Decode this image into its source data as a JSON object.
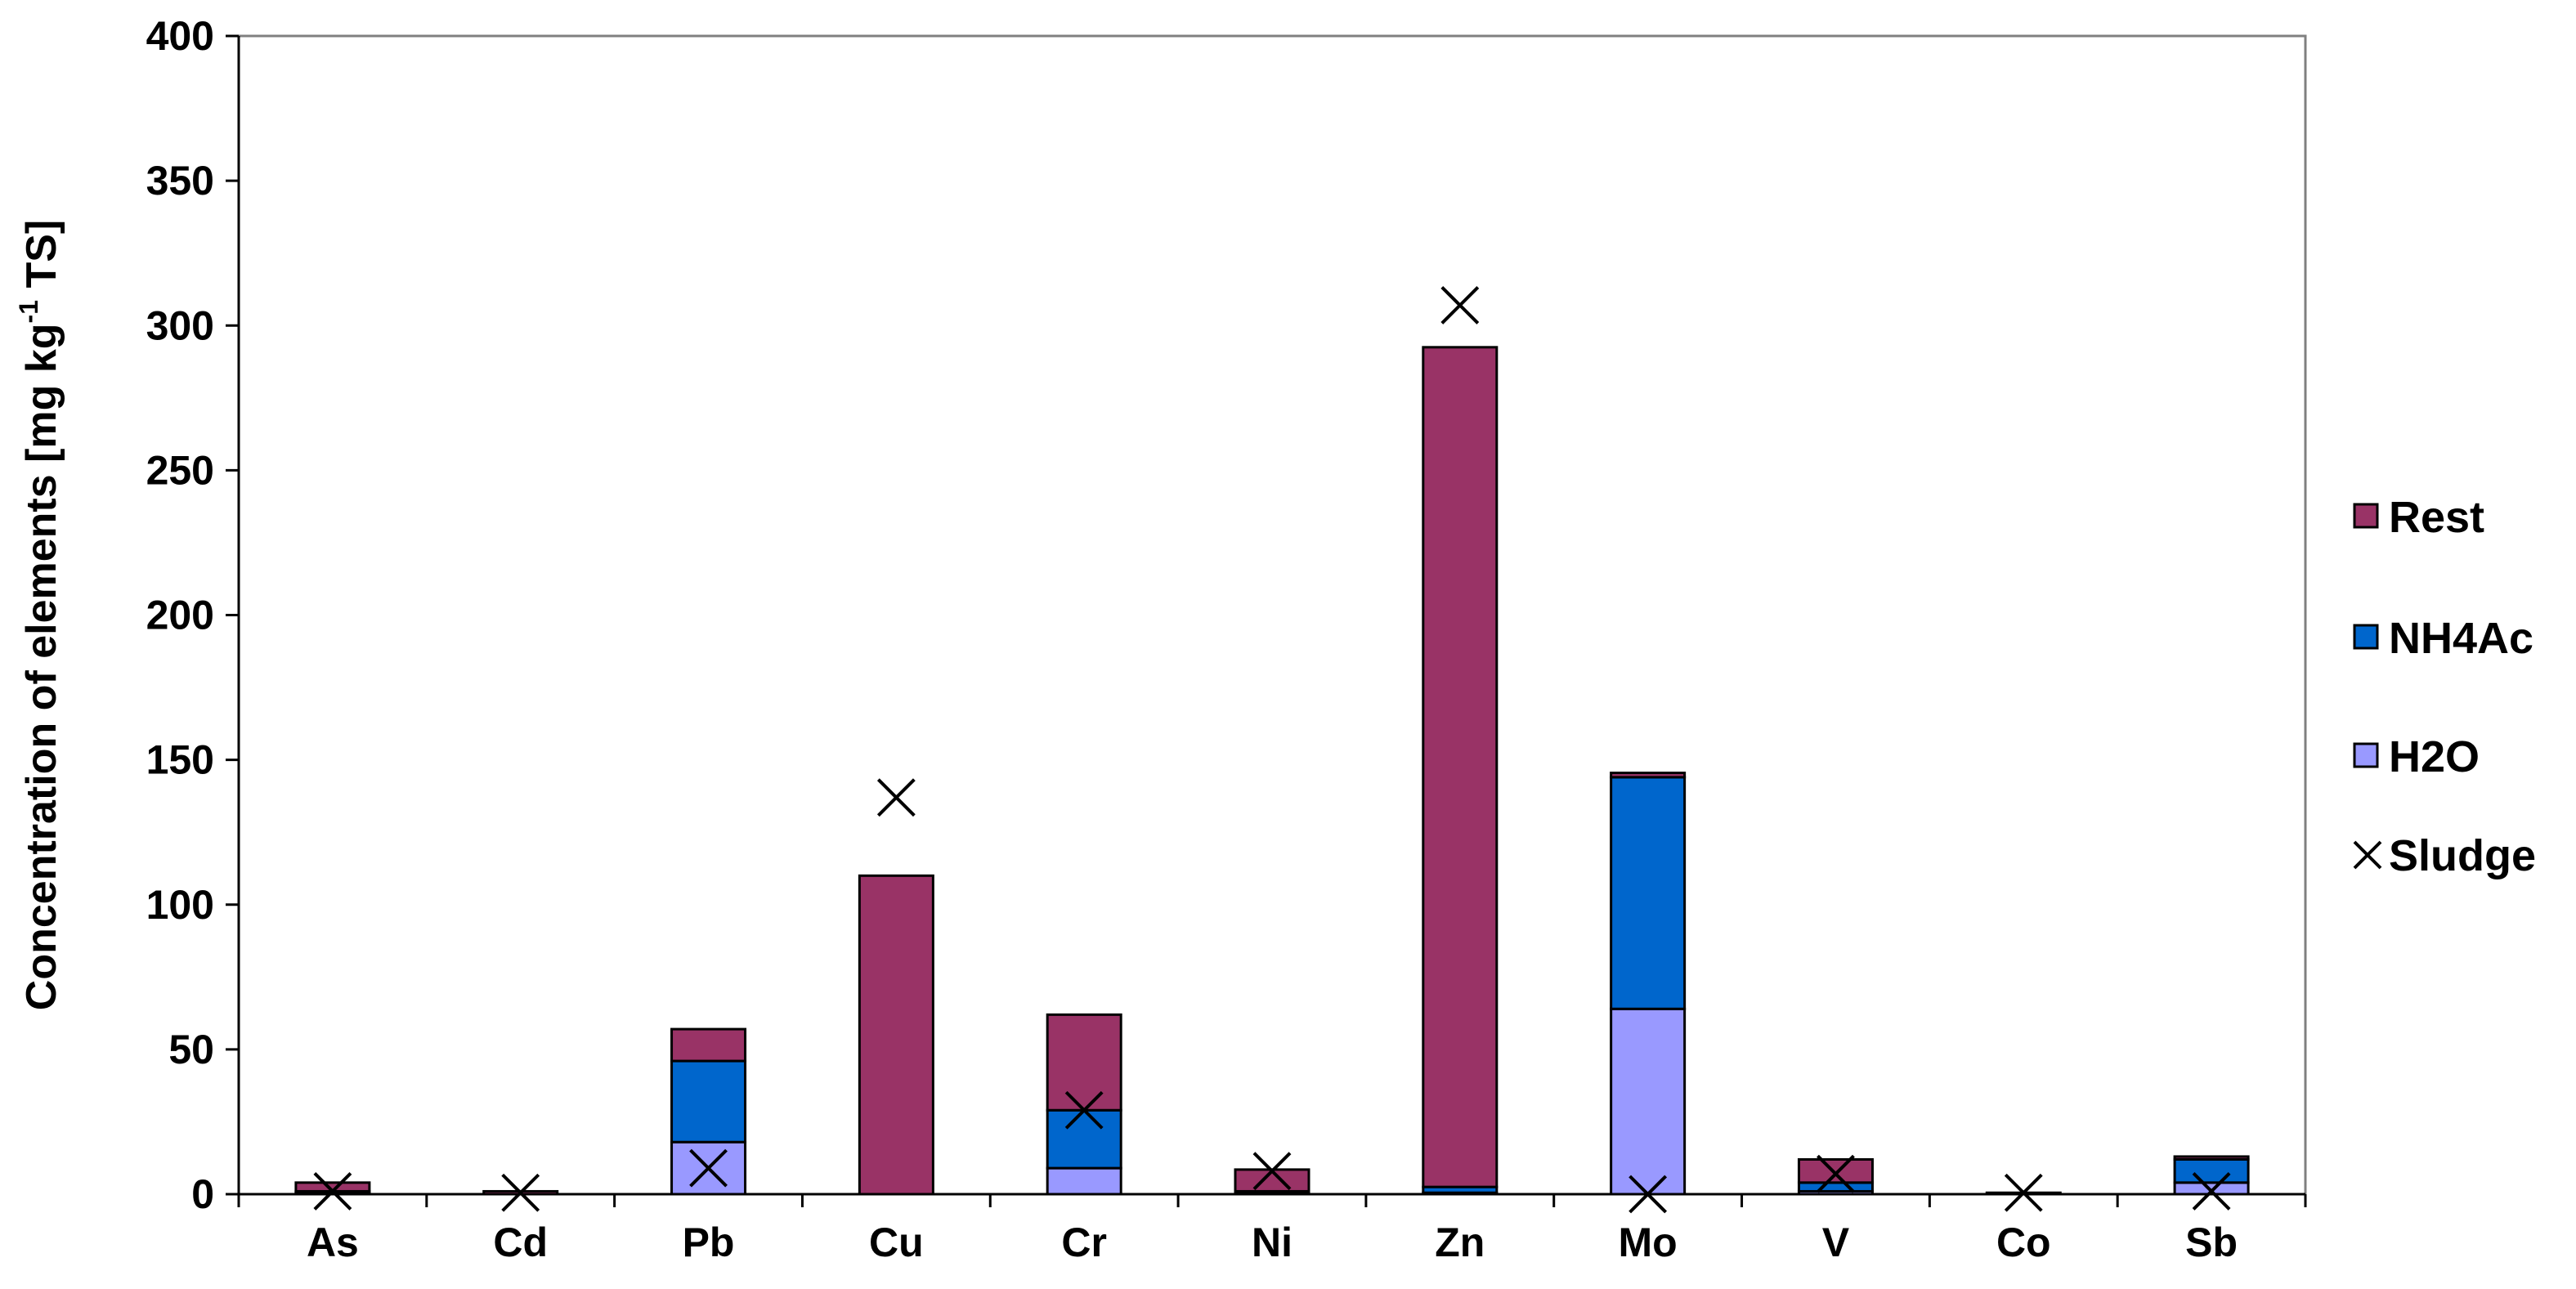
{
  "chart_data": {
    "type": "bar",
    "stacked": true,
    "categories": [
      "As",
      "Cd",
      "Pb",
      "Cu",
      "Cr",
      "Ni",
      "Zn",
      "Mo",
      "V",
      "Co",
      "Sb"
    ],
    "series": [
      {
        "name": "H2O",
        "color": "#9999ff",
        "values": [
          0.5,
          0,
          18,
          0,
          9,
          0.5,
          0.5,
          64,
          1,
          0,
          4
        ]
      },
      {
        "name": "NH4Ac",
        "color": "#0066cc",
        "values": [
          0.5,
          0,
          28,
          0,
          20,
          0.5,
          2,
          80,
          3,
          0,
          8
        ]
      },
      {
        "name": "Rest",
        "color": "#993366",
        "values": [
          3,
          1,
          11,
          110,
          33,
          7.5,
          290,
          1.5,
          8,
          0.5,
          1
        ]
      }
    ],
    "markers": {
      "name": "Sludge",
      "symbol": "×",
      "values": [
        1,
        0.5,
        9,
        137,
        29,
        8,
        307,
        0,
        7,
        0.5,
        1
      ]
    },
    "ylabel_main": "Concentration of elements [mg kg",
    "ylabel_sup": "-1",
    "ylabel_end": " TS]",
    "ylim": [
      0,
      400
    ],
    "yticks": [
      0,
      50,
      100,
      150,
      200,
      250,
      300,
      350,
      400
    ],
    "legend_position": "right",
    "legend_order": [
      "Rest",
      "NH4Ac",
      "H2O",
      "Sludge"
    ],
    "grid": false
  }
}
